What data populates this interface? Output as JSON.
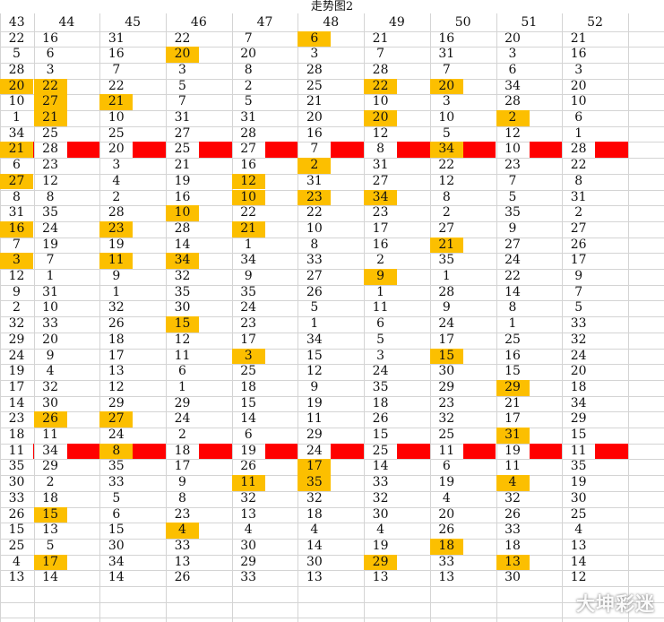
{
  "title": "走势图2",
  "columns": [
    "43",
    "44",
    "45",
    "46",
    "47",
    "48",
    "49",
    "50",
    "51",
    "52"
  ],
  "watermark": "大坤彩迷",
  "colors": {
    "highlight": "#fcbf00",
    "bar": "#ff0000",
    "grid": "#d4d4d4"
  },
  "rows": [
    [
      "22",
      "16",
      "31",
      "22",
      "7",
      "6",
      "21",
      "16",
      "20",
      "21"
    ],
    [
      "5",
      "6",
      "16",
      "20",
      "20",
      "3",
      "7",
      "31",
      "3",
      "16"
    ],
    [
      "28",
      "3",
      "7",
      "3",
      "8",
      "28",
      "28",
      "7",
      "6",
      "3"
    ],
    [
      "20",
      "22",
      "22",
      "5",
      "2",
      "25",
      "22",
      "20",
      "34",
      "20"
    ],
    [
      "10",
      "27",
      "21",
      "7",
      "5",
      "21",
      "10",
      "3",
      "28",
      "10"
    ],
    [
      "1",
      "21",
      "10",
      "31",
      "31",
      "20",
      "20",
      "10",
      "2",
      "6"
    ],
    [
      "34",
      "25",
      "25",
      "27",
      "28",
      "16",
      "12",
      "5",
      "12",
      "1"
    ],
    [
      "21",
      "28",
      "20",
      "25",
      "27",
      "7",
      "8",
      "34",
      "10",
      "28"
    ],
    [
      "6",
      "23",
      "3",
      "21",
      "16",
      "2",
      "31",
      "22",
      "23",
      "22"
    ],
    [
      "27",
      "12",
      "4",
      "19",
      "12",
      "31",
      "27",
      "12",
      "7",
      "8"
    ],
    [
      "8",
      "8",
      "2",
      "16",
      "10",
      "23",
      "34",
      "8",
      "5",
      "31"
    ],
    [
      "31",
      "35",
      "28",
      "10",
      "22",
      "22",
      "23",
      "2",
      "35",
      "2"
    ],
    [
      "16",
      "24",
      "23",
      "28",
      "21",
      "10",
      "17",
      "27",
      "9",
      "27"
    ],
    [
      "7",
      "19",
      "19",
      "14",
      "1",
      "8",
      "16",
      "21",
      "27",
      "26"
    ],
    [
      "3",
      "7",
      "11",
      "34",
      "34",
      "33",
      "2",
      "35",
      "24",
      "17"
    ],
    [
      "12",
      "1",
      "9",
      "32",
      "9",
      "27",
      "9",
      "1",
      "22",
      "9"
    ],
    [
      "9",
      "31",
      "1",
      "35",
      "35",
      "26",
      "1",
      "28",
      "14",
      "7"
    ],
    [
      "2",
      "10",
      "32",
      "30",
      "24",
      "5",
      "11",
      "9",
      "8",
      "5"
    ],
    [
      "32",
      "33",
      "26",
      "15",
      "23",
      "1",
      "6",
      "24",
      "1",
      "33"
    ],
    [
      "29",
      "20",
      "18",
      "12",
      "17",
      "34",
      "5",
      "17",
      "25",
      "32"
    ],
    [
      "24",
      "9",
      "17",
      "11",
      "3",
      "15",
      "3",
      "15",
      "16",
      "24"
    ],
    [
      "19",
      "4",
      "13",
      "6",
      "25",
      "12",
      "24",
      "30",
      "15",
      "20"
    ],
    [
      "17",
      "32",
      "12",
      "1",
      "18",
      "9",
      "35",
      "29",
      "29",
      "18"
    ],
    [
      "14",
      "30",
      "29",
      "29",
      "15",
      "19",
      "18",
      "23",
      "21",
      "34"
    ],
    [
      "23",
      "26",
      "27",
      "24",
      "14",
      "11",
      "26",
      "32",
      "17",
      "29"
    ],
    [
      "18",
      "11",
      "24",
      "2",
      "6",
      "29",
      "15",
      "25",
      "31",
      "15"
    ],
    [
      "11",
      "34",
      "8",
      "18",
      "19",
      "24",
      "25",
      "11",
      "19",
      "11"
    ],
    [
      "35",
      "29",
      "35",
      "17",
      "26",
      "17",
      "14",
      "6",
      "11",
      "35"
    ],
    [
      "30",
      "2",
      "33",
      "9",
      "11",
      "35",
      "33",
      "19",
      "4",
      "19"
    ],
    [
      "33",
      "18",
      "5",
      "8",
      "32",
      "32",
      "32",
      "4",
      "32",
      "30"
    ],
    [
      "26",
      "15",
      "6",
      "23",
      "13",
      "18",
      "30",
      "20",
      "26",
      "25"
    ],
    [
      "15",
      "13",
      "15",
      "4",
      "4",
      "4",
      "4",
      "26",
      "33",
      "4"
    ],
    [
      "25",
      "5",
      "30",
      "33",
      "30",
      "14",
      "19",
      "18",
      "18",
      "13"
    ],
    [
      "4",
      "17",
      "34",
      "13",
      "29",
      "30",
      "29",
      "33",
      "13",
      "14"
    ],
    [
      "13",
      "14",
      "14",
      "26",
      "33",
      "13",
      "13",
      "13",
      "30",
      "12"
    ]
  ],
  "highlights": [
    [
      0,
      5
    ],
    [
      1,
      3
    ],
    [
      3,
      0
    ],
    [
      3,
      1
    ],
    [
      3,
      6
    ],
    [
      3,
      7
    ],
    [
      4,
      1
    ],
    [
      4,
      2
    ],
    [
      5,
      1
    ],
    [
      5,
      6
    ],
    [
      5,
      8
    ],
    [
      7,
      0
    ],
    [
      7,
      7
    ],
    [
      8,
      5
    ],
    [
      9,
      0
    ],
    [
      9,
      4
    ],
    [
      10,
      4
    ],
    [
      10,
      5
    ],
    [
      10,
      6
    ],
    [
      11,
      3
    ],
    [
      12,
      0
    ],
    [
      12,
      2
    ],
    [
      12,
      4
    ],
    [
      13,
      7
    ],
    [
      14,
      0
    ],
    [
      14,
      2
    ],
    [
      14,
      3
    ],
    [
      15,
      6
    ],
    [
      18,
      3
    ],
    [
      20,
      4
    ],
    [
      20,
      7
    ],
    [
      22,
      8
    ],
    [
      24,
      1
    ],
    [
      24,
      2
    ],
    [
      25,
      8
    ],
    [
      26,
      2
    ],
    [
      27,
      5
    ],
    [
      28,
      4
    ],
    [
      28,
      5
    ],
    [
      28,
      8
    ],
    [
      30,
      1
    ],
    [
      31,
      3
    ],
    [
      32,
      7
    ],
    [
      33,
      1
    ],
    [
      33,
      6
    ],
    [
      33,
      8
    ]
  ],
  "red_rows": [
    7,
    26
  ]
}
